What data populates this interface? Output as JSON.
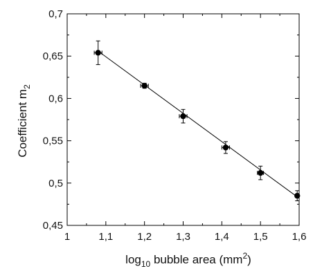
{
  "chart_data": {
    "type": "scatter",
    "xlim": [
      1,
      1.6
    ],
    "ylim": [
      0.45,
      0.7
    ],
    "x_ticks": [
      1,
      1.1,
      1.2,
      1.3,
      1.4,
      1.5,
      1.6
    ],
    "x_tick_labels": [
      "1",
      "1,1",
      "1,2",
      "1,3",
      "1,4",
      "1,5",
      "1,6"
    ],
    "y_ticks": [
      0.45,
      0.5,
      0.55,
      0.6,
      0.65,
      0.7
    ],
    "y_tick_labels": [
      "0,45",
      "0,5",
      "0,55",
      "0,6",
      "0,65",
      "0,7"
    ],
    "xlabel": {
      "pre": "log",
      "sub": "10",
      "mid": " bubble area (mm",
      "sup": "2",
      "post": ")"
    },
    "ylabel": {
      "pre": "Coefficient m",
      "sub": "2"
    },
    "grid": false,
    "points": [
      {
        "x": 1.08,
        "y": 0.654,
        "xerr": 0.01,
        "yerr": 0.014
      },
      {
        "x": 1.2,
        "y": 0.615,
        "xerr": 0.01,
        "yerr": 0.003
      },
      {
        "x": 1.3,
        "y": 0.579,
        "xerr": 0.01,
        "yerr": 0.008
      },
      {
        "x": 1.41,
        "y": 0.542,
        "xerr": 0.01,
        "yerr": 0.007
      },
      {
        "x": 1.5,
        "y": 0.512,
        "xerr": 0.008,
        "yerr": 0.008
      },
      {
        "x": 1.595,
        "y": 0.485,
        "xerr": 0.005,
        "yerr": 0.006
      }
    ],
    "fit_line": {
      "x": [
        1.08,
        1.6
      ],
      "y": [
        0.656,
        0.482
      ]
    }
  }
}
